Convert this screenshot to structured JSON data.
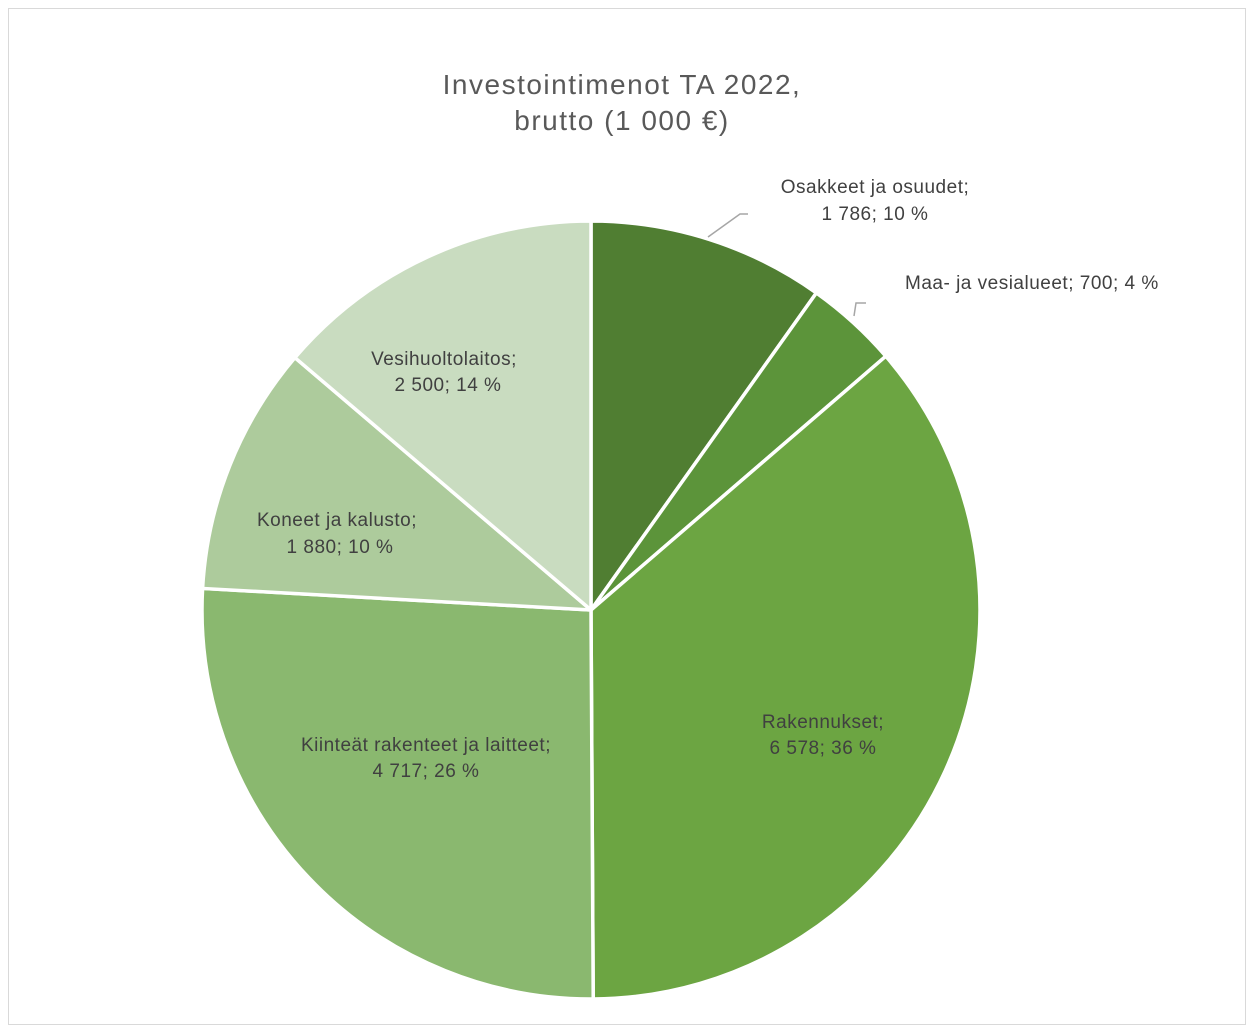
{
  "chart_data": {
    "type": "pie",
    "title_lines": [
      "Investointimenot TA 2022,",
      "brutto (1 000 €)"
    ],
    "slices": [
      {
        "label": "Osakkeet ja osuudet",
        "value": 1786,
        "value_text": "1 786",
        "percent": "10 %",
        "color": "#507e32"
      },
      {
        "label": "Maa- ja vesialueet",
        "value": 700,
        "value_text": "700",
        "percent": "4 %",
        "color": "#5c943a"
      },
      {
        "label": "Rakennukset",
        "value": 6578,
        "value_text": "6 578",
        "percent": "36 %",
        "color": "#6ca542"
      },
      {
        "label": "Kiinteät rakenteet ja laitteet",
        "value": 4717,
        "value_text": "4 717",
        "percent": "26 %",
        "color": "#8ab86f"
      },
      {
        "label": "Koneet ja kalusto",
        "value": 1880,
        "value_text": "1 880",
        "percent": "10 %",
        "color": "#adcb9c"
      },
      {
        "label": "Vesihuoltolaitos",
        "value": 2500,
        "value_text": "2 500",
        "percent": "14 %",
        "color": "#c9dcc0"
      }
    ],
    "legend": "none",
    "data_labels": "category; value; percent"
  }
}
